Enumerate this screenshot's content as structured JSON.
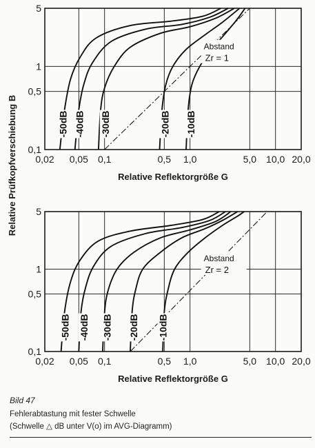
{
  "ylabel": "Relative Prüfkopfverschiebung B",
  "chart_data": [
    {
      "type": "line",
      "xlabel": "Relative Reflektorgröße G",
      "xscale": "log",
      "yscale": "log",
      "xlim": [
        0.02,
        20
      ],
      "ylim": [
        0.1,
        5
      ],
      "x_ticks": [
        "0,02",
        "0,05",
        "0,1",
        "0,5",
        "1,0",
        "5,0",
        "10,0",
        "20,0"
      ],
      "x_tick_values": [
        0.02,
        0.05,
        0.1,
        0.5,
        1,
        5,
        10,
        20
      ],
      "y_ticks": [
        "5",
        "1",
        "0,5",
        "0,1"
      ],
      "y_tick_values": [
        5,
        1,
        0.5,
        0.1
      ],
      "grid": true,
      "annotation": [
        "Abstand",
        "Zr = 1"
      ],
      "reference_line": {
        "style": "dash-dot",
        "points": [
          [
            0.1,
            0.1
          ],
          [
            5,
            5
          ]
        ]
      },
      "series": [
        {
          "name": "-50dB",
          "points": [
            [
              0.03,
              0.1
            ],
            [
              0.034,
              0.3
            ],
            [
              0.04,
              0.7
            ],
            [
              0.052,
              1.3
            ],
            [
              0.08,
              2.2
            ],
            [
              0.2,
              3.1
            ],
            [
              0.6,
              3.5
            ],
            [
              1.4,
              4.0
            ],
            [
              2.3,
              5.0
            ]
          ]
        },
        {
          "name": "-40dB",
          "points": [
            [
              0.045,
              0.1
            ],
            [
              0.05,
              0.3
            ],
            [
              0.057,
              0.6
            ],
            [
              0.072,
              1.1
            ],
            [
              0.12,
              2.0
            ],
            [
              0.3,
              2.8
            ],
            [
              0.8,
              3.2
            ],
            [
              1.7,
              3.9
            ],
            [
              2.8,
              5.0
            ]
          ]
        },
        {
          "name": "-30dB",
          "points": [
            [
              0.085,
              0.1
            ],
            [
              0.09,
              0.3
            ],
            [
              0.1,
              0.55
            ],
            [
              0.13,
              1.0
            ],
            [
              0.2,
              1.7
            ],
            [
              0.45,
              2.5
            ],
            [
              1.0,
              3.0
            ],
            [
              2.0,
              3.8
            ],
            [
              3.3,
              5.0
            ]
          ]
        },
        {
          "name": "-20dB",
          "points": [
            [
              0.44,
              0.1
            ],
            [
              0.47,
              0.3
            ],
            [
              0.52,
              0.6
            ],
            [
              0.63,
              1.0
            ],
            [
              0.9,
              1.6
            ],
            [
              1.5,
              2.4
            ],
            [
              2.4,
              3.4
            ],
            [
              3.8,
              5.0
            ]
          ]
        },
        {
          "name": "-10dB",
          "points": [
            [
              0.9,
              0.1
            ],
            [
              0.95,
              0.3
            ],
            [
              1.05,
              0.6
            ],
            [
              1.3,
              1.0
            ],
            [
              1.8,
              1.6
            ],
            [
              2.6,
              2.5
            ],
            [
              3.5,
              3.6
            ],
            [
              4.4,
              5.0
            ]
          ]
        }
      ]
    },
    {
      "type": "line",
      "xlabel": "Relative Reflektorgröße G",
      "xscale": "log",
      "yscale": "log",
      "xlim": [
        0.02,
        20
      ],
      "ylim": [
        0.1,
        5
      ],
      "x_ticks": [
        "0,02",
        "0,05",
        "0,1",
        "0,5",
        "1,0",
        "5,0",
        "10,0",
        "20,0"
      ],
      "x_tick_values": [
        0.02,
        0.05,
        0.1,
        0.5,
        1,
        5,
        10,
        20
      ],
      "y_ticks": [
        "5",
        "1",
        "0,5",
        "0,1"
      ],
      "y_tick_values": [
        5,
        1,
        0.5,
        0.1
      ],
      "grid": true,
      "annotation": [
        "Abstand",
        "Zr = 2"
      ],
      "reference_line": {
        "style": "dash-dot",
        "points": [
          [
            0.2,
            0.1
          ],
          [
            8,
            5
          ]
        ]
      },
      "series": [
        {
          "name": "-50dB",
          "points": [
            [
              0.031,
              0.1
            ],
            [
              0.034,
              0.3
            ],
            [
              0.04,
              0.7
            ],
            [
              0.052,
              1.3
            ],
            [
              0.085,
              2.2
            ],
            [
              0.2,
              2.9
            ],
            [
              0.6,
              3.4
            ],
            [
              1.4,
              4.0
            ],
            [
              2.2,
              5.0
            ]
          ]
        },
        {
          "name": "-40dB",
          "points": [
            [
              0.05,
              0.1
            ],
            [
              0.053,
              0.3
            ],
            [
              0.06,
              0.6
            ],
            [
              0.075,
              1.1
            ],
            [
              0.12,
              1.9
            ],
            [
              0.3,
              2.7
            ],
            [
              0.8,
              3.2
            ],
            [
              1.7,
              3.9
            ],
            [
              2.6,
              5.0
            ]
          ]
        },
        {
          "name": "-30dB",
          "points": [
            [
              0.095,
              0.1
            ],
            [
              0.1,
              0.3
            ],
            [
              0.11,
              0.55
            ],
            [
              0.14,
              1.0
            ],
            [
              0.22,
              1.6
            ],
            [
              0.45,
              2.4
            ],
            [
              1.0,
              3.0
            ],
            [
              2.0,
              3.8
            ],
            [
              3.0,
              5.0
            ]
          ]
        },
        {
          "name": "-20dB",
          "points": [
            [
              0.2,
              0.1
            ],
            [
              0.21,
              0.3
            ],
            [
              0.23,
              0.55
            ],
            [
              0.28,
              1.0
            ],
            [
              0.45,
              1.6
            ],
            [
              0.8,
              2.4
            ],
            [
              1.5,
              3.1
            ],
            [
              2.5,
              4.0
            ],
            [
              3.6,
              5.0
            ]
          ]
        },
        {
          "name": "-10dB",
          "points": [
            [
              0.48,
              0.1
            ],
            [
              0.5,
              0.3
            ],
            [
              0.55,
              0.55
            ],
            [
              0.66,
              1.0
            ],
            [
              0.95,
              1.6
            ],
            [
              1.5,
              2.4
            ],
            [
              2.4,
              3.4
            ],
            [
              3.6,
              4.4
            ],
            [
              4.3,
              5.0
            ]
          ]
        }
      ]
    }
  ],
  "caption": {
    "figure": "Bild 47",
    "line1": "Fehlerabtastung mit fester Schwelle",
    "line2": "(Schwelle △ dB unter V(o) im AVG-Diagramm)"
  }
}
